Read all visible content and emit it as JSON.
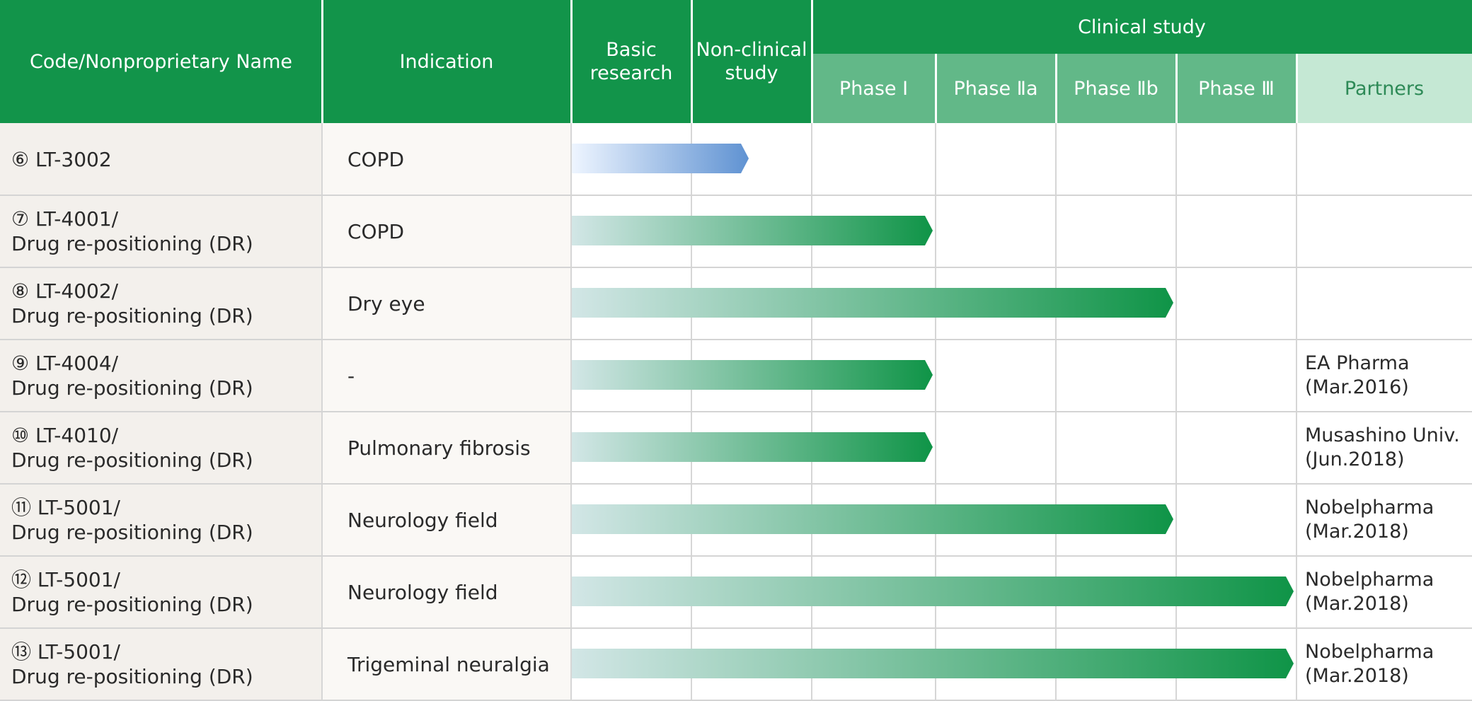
{
  "chart_data": {
    "type": "table",
    "headers": {
      "code": "Code/Nonproprietary Name",
      "indication": "Indication",
      "basic_research": "Basic\nresearch",
      "non_clinical": "Non-clinical\nstudy",
      "clinical": "Clinical study",
      "phase1": "Phase Ⅰ",
      "phase2a": "Phase Ⅱa",
      "phase2b": "Phase Ⅱb",
      "phase3": "Phase Ⅲ",
      "partners": "Partners"
    },
    "stages": [
      "Basic research",
      "Non-clinical study",
      "Phase Ⅰ",
      "Phase Ⅱa",
      "Phase Ⅱb",
      "Phase Ⅲ"
    ],
    "rows": [
      {
        "code": "⑥ LT-3002",
        "indication": "COPD",
        "stage_reached": 1.5,
        "bar_style": "blue",
        "partner": ""
      },
      {
        "code": "⑦ LT-4001/\nDrug re-positioning (DR)",
        "indication": "COPD",
        "stage_reached": 3,
        "bar_style": "green",
        "partner": ""
      },
      {
        "code": "⑧ LT-4002/\nDrug re-positioning (DR)",
        "indication": "Dry eye",
        "stage_reached": 5,
        "bar_style": "green",
        "partner": ""
      },
      {
        "code": "⑨ LT-4004/\nDrug re-positioning (DR)",
        "indication": "-",
        "stage_reached": 3,
        "bar_style": "green",
        "partner": "EA Pharma\n(Mar.2016)"
      },
      {
        "code": "⑩ LT-4010/\nDrug re-positioning (DR)",
        "indication": "Pulmonary fibrosis",
        "stage_reached": 3,
        "bar_style": "green",
        "partner": "Musashino Univ.\n(Jun.2018)"
      },
      {
        "code": "⑪ LT-5001/\nDrug re-positioning (DR)",
        "indication": "Neurology field",
        "stage_reached": 5,
        "bar_style": "green",
        "partner": "Nobelpharma\n(Mar.2018)"
      },
      {
        "code": "⑫ LT-5001/\nDrug re-positioning (DR)",
        "indication": "Neurology field",
        "stage_reached": 6,
        "bar_style": "green",
        "partner": "Nobelpharma\n(Mar.2018)"
      },
      {
        "code": "⑬ LT-5001/\nDrug re-positioning (DR)",
        "indication": "Trigeminal neuralgia",
        "stage_reached": 6,
        "bar_style": "green",
        "partner": "Nobelpharma\n(Mar.2018)"
      }
    ],
    "colors": {
      "header_dark": "#12944a",
      "header_phase": "#62b888",
      "header_partner": "#c5e8d4",
      "bar_green_start": "#d2e6e6",
      "bar_green_end": "#0f9447",
      "bar_blue_start": "#eef5ff",
      "bar_blue_end": "#5f92d2"
    }
  }
}
